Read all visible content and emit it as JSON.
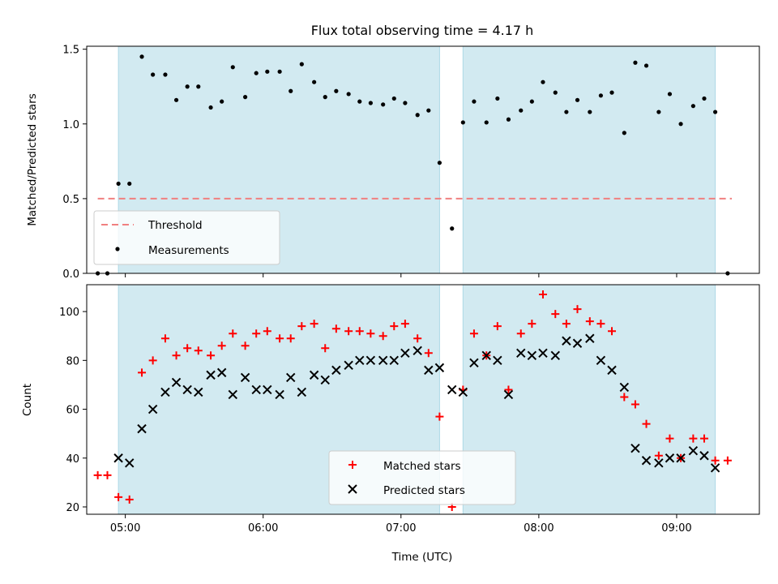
{
  "title": "Flux total observing time = 4.17 h",
  "colors": {
    "shade": "#add8e6",
    "threshold": "#f08080",
    "matched": "#ff0000",
    "predicted": "#000000",
    "measurement": "#000000"
  },
  "chart_data": [
    {
      "type": "scatter",
      "panel": "top",
      "ylabel": "Matched/Predicted stars",
      "xlabel": "",
      "xlim": [
        4.72,
        9.6
      ],
      "ylim": [
        0,
        1.52
      ],
      "x_ticks": [
        5,
        6,
        7,
        8,
        9
      ],
      "x_tick_labels_visible": false,
      "y_ticks": [
        0.0,
        0.5,
        1.0,
        1.5
      ],
      "y_tick_labels": [
        "0.0",
        "0.5",
        "1.0",
        "1.5"
      ],
      "shaded_intervals": [
        [
          4.95,
          7.28
        ],
        [
          7.45,
          9.28
        ]
      ],
      "threshold": {
        "name": "Threshold",
        "y": 0.5,
        "x_range": [
          4.8,
          9.4
        ],
        "style": "dashed"
      },
      "legend": {
        "position": "lower-left",
        "entries": [
          "Threshold",
          "Measurements"
        ]
      },
      "series": [
        {
          "name": "Measurements",
          "marker": "dot",
          "x": [
            4.8,
            4.87,
            4.95,
            5.03,
            5.12,
            5.2,
            5.29,
            5.37,
            5.45,
            5.53,
            5.62,
            5.7,
            5.78,
            5.87,
            5.95,
            6.03,
            6.12,
            6.2,
            6.28,
            6.37,
            6.45,
            6.53,
            6.62,
            6.7,
            6.78,
            6.87,
            6.95,
            7.03,
            7.12,
            7.2,
            7.28,
            7.37,
            7.45,
            7.53,
            7.62,
            7.7,
            7.78,
            7.87,
            7.95,
            8.03,
            8.12,
            8.2,
            8.28,
            8.37,
            8.45,
            8.53,
            8.62,
            8.7,
            8.78,
            8.87,
            8.95,
            9.03,
            9.12,
            9.2,
            9.28,
            9.37
          ],
          "y": [
            0.0,
            0.0,
            0.6,
            0.6,
            1.45,
            1.33,
            1.33,
            1.16,
            1.25,
            1.25,
            1.11,
            1.15,
            1.38,
            1.18,
            1.34,
            1.35,
            1.35,
            1.22,
            1.4,
            1.28,
            1.18,
            1.22,
            1.2,
            1.15,
            1.14,
            1.13,
            1.17,
            1.14,
            1.06,
            1.09,
            0.74,
            0.3,
            1.01,
            1.15,
            1.01,
            1.17,
            1.03,
            1.09,
            1.15,
            1.28,
            1.21,
            1.08,
            1.16,
            1.08,
            1.19,
            1.21,
            0.94,
            1.41,
            1.39,
            1.08,
            1.2,
            1.0,
            1.12,
            1.17,
            1.08,
            0.0
          ]
        }
      ]
    },
    {
      "type": "scatter",
      "panel": "bottom",
      "ylabel": "Count",
      "xlabel": "Time (UTC)",
      "xlim": [
        4.72,
        9.6
      ],
      "ylim": [
        17,
        111
      ],
      "x_ticks": [
        5,
        6,
        7,
        8,
        9
      ],
      "x_tick_labels": [
        "05:00",
        "06:00",
        "07:00",
        "08:00",
        "09:00"
      ],
      "y_ticks": [
        20,
        40,
        60,
        80,
        100
      ],
      "y_tick_labels": [
        "20",
        "40",
        "60",
        "80",
        "100"
      ],
      "shaded_intervals": [
        [
          4.95,
          7.28
        ],
        [
          7.45,
          9.28
        ]
      ],
      "legend": {
        "position": "lower-center",
        "entries": [
          "Matched stars",
          "Predicted stars"
        ]
      },
      "series": [
        {
          "name": "Matched stars",
          "marker": "plus",
          "x": [
            4.8,
            4.87,
            4.95,
            5.03,
            5.12,
            5.2,
            5.29,
            5.37,
            5.45,
            5.53,
            5.62,
            5.7,
            5.78,
            5.87,
            5.95,
            6.03,
            6.12,
            6.2,
            6.28,
            6.37,
            6.45,
            6.53,
            6.62,
            6.7,
            6.78,
            6.87,
            6.95,
            7.03,
            7.12,
            7.2,
            7.28,
            7.37,
            7.45,
            7.53,
            7.62,
            7.7,
            7.78,
            7.87,
            7.95,
            8.03,
            8.12,
            8.2,
            8.28,
            8.37,
            8.45,
            8.53,
            8.62,
            8.7,
            8.78,
            8.87,
            8.95,
            9.03,
            9.12,
            9.2,
            9.28,
            9.37
          ],
          "y": [
            33,
            33,
            24,
            23,
            75,
            80,
            89,
            82,
            85,
            84,
            82,
            86,
            91,
            86,
            91,
            92,
            89,
            89,
            94,
            95,
            85,
            93,
            92,
            92,
            91,
            90,
            94,
            95,
            89,
            83,
            57,
            20,
            68,
            91,
            82,
            94,
            68,
            91,
            95,
            107,
            99,
            95,
            101,
            96,
            95,
            92,
            65,
            62,
            54,
            41,
            48,
            40,
            48,
            48,
            39,
            39
          ]
        },
        {
          "name": "Predicted stars",
          "marker": "x",
          "x": [
            4.95,
            5.03,
            5.12,
            5.2,
            5.29,
            5.37,
            5.45,
            5.53,
            5.62,
            5.7,
            5.78,
            5.87,
            5.95,
            6.03,
            6.12,
            6.2,
            6.28,
            6.37,
            6.45,
            6.53,
            6.62,
            6.7,
            6.78,
            6.87,
            6.95,
            7.03,
            7.12,
            7.2,
            7.28,
            7.37,
            7.45,
            7.53,
            7.62,
            7.7,
            7.78,
            7.87,
            7.95,
            8.03,
            8.12,
            8.2,
            8.28,
            8.37,
            8.45,
            8.53,
            8.62,
            8.7,
            8.78,
            8.87,
            8.95,
            9.03,
            9.12,
            9.2,
            9.28
          ],
          "y": [
            40,
            38,
            52,
            60,
            67,
            71,
            68,
            67,
            74,
            75,
            66,
            73,
            68,
            68,
            66,
            73,
            67,
            74,
            72,
            76,
            78,
            80,
            80,
            80,
            80,
            83,
            84,
            76,
            77,
            68,
            67,
            79,
            82,
            80,
            66,
            83,
            82,
            83,
            82,
            88,
            87,
            89,
            80,
            76,
            69,
            44,
            39,
            38,
            40,
            40,
            43,
            41,
            36
          ]
        }
      ]
    }
  ]
}
